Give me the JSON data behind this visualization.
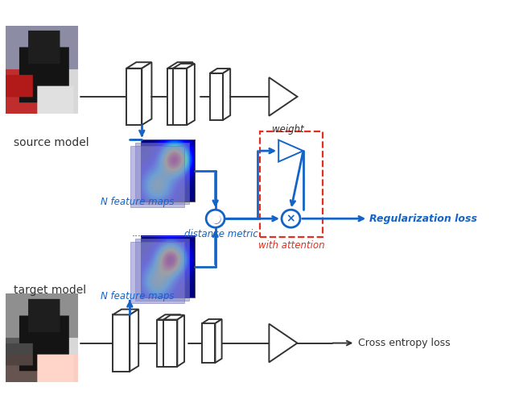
{
  "bg_color": "#ffffff",
  "blue_color": "#1464C8",
  "red_color": "#E03020",
  "black": "#1a1a1a",
  "dark_gray": "#333333",
  "source_label": "source model",
  "target_label": "target model",
  "n_feature_maps_label": "N feature maps",
  "distance_metric_label": "distance metric",
  "weight_label": "weight",
  "with_attention_label": "with attention",
  "regularization_label": "Regularization loss",
  "cross_entropy_label": "Cross entropy loss",
  "figsize": [
    6.4,
    5.21
  ],
  "dpi": 100
}
